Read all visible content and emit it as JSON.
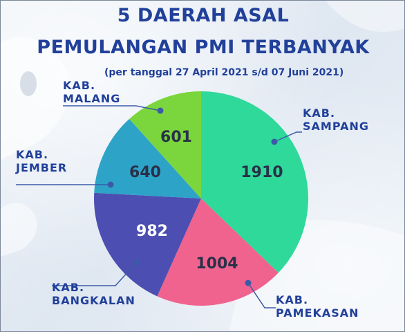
{
  "header": {
    "title_line1": "5 DAERAH ASAL",
    "title_line2": "PEMULANGAN PMI TERBANYAK",
    "subtitle": "(per tanggal 27 April 2021 s/d 07 Juni 2021)"
  },
  "chart_data": {
    "type": "pie",
    "start_angle_deg": 0,
    "direction": "clockwise",
    "slices": [
      {
        "label_lines": [
          "KAB.",
          "SAMPANG"
        ],
        "value": 1910,
        "display": "1910",
        "color": "#2ed99a",
        "value_color": "#2a3048"
      },
      {
        "label_lines": [
          "KAB.",
          "PAMEKASAN"
        ],
        "value": 1004,
        "display": "1004",
        "color": "#f0638f",
        "value_color": "#2a3048"
      },
      {
        "label_lines": [
          "KAB.",
          "BANGKALAN"
        ],
        "value": 982,
        "display": "982",
        "color": "#4c4fb1",
        "value_color": "#ffffff"
      },
      {
        "label_lines": [
          "KAB.",
          "JEMBER"
        ],
        "value": 640,
        "display": "640",
        "color": "#2ea3c8",
        "value_color": "#2a3048"
      },
      {
        "label_lines": [
          "KAB.",
          "MALANG"
        ],
        "value": 601,
        "display": "601",
        "color": "#7ad63c",
        "value_color": "#2a3048"
      }
    ],
    "label_color": "#21409a",
    "leader_color": "#3b5aa8"
  }
}
